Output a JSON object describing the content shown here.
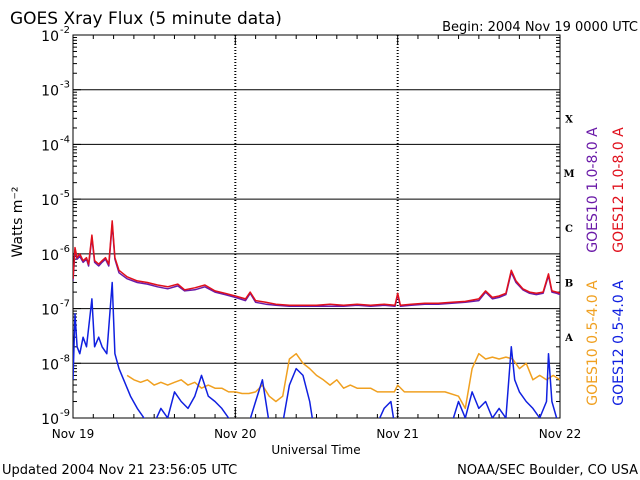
{
  "chart_data": {
    "type": "line",
    "title": "GOES Xray Flux (5 minute data)",
    "begin_label": "Begin:  2004 Nov 19 0000 UTC",
    "xlabel": "Universal Time",
    "ylabel": "Watts m⁻²",
    "y_scale": "log",
    "ylim": [
      1e-09,
      0.01
    ],
    "y_ticks": [
      {
        "base": "10",
        "exp": "-9"
      },
      {
        "base": "10",
        "exp": "-8"
      },
      {
        "base": "10",
        "exp": "-7"
      },
      {
        "base": "10",
        "exp": "-6"
      },
      {
        "base": "10",
        "exp": "-5"
      },
      {
        "base": "10",
        "exp": "-4"
      },
      {
        "base": "10",
        "exp": "-3"
      },
      {
        "base": "10",
        "exp": "-2"
      }
    ],
    "xlim": [
      0,
      72
    ],
    "x_ticks": [
      {
        "hour": 0,
        "label": "Nov 19"
      },
      {
        "hour": 24,
        "label": "Nov 20"
      },
      {
        "hour": 48,
        "label": "Nov 21"
      },
      {
        "hour": 72,
        "label": "Nov 22"
      }
    ],
    "flare_classes": [
      {
        "label": "A",
        "y": 3e-08
      },
      {
        "label": "B",
        "y": 3e-07
      },
      {
        "label": "C",
        "y": 3e-06
      },
      {
        "label": "M",
        "y": 3e-05
      },
      {
        "label": "X",
        "y": 0.0003
      }
    ],
    "grid": "horizontal lines at each decade from 1e-8 to 1e-3",
    "series": [
      {
        "name": "GOES10 1.0-8.0 A",
        "color": "#6a1aa8",
        "points": [
          [
            0,
            3.2e-07
          ],
          [
            0.3,
            1.2e-06
          ],
          [
            0.6,
            8e-07
          ],
          [
            1,
            9e-07
          ],
          [
            1.5,
            7e-07
          ],
          [
            2,
            8e-07
          ],
          [
            2.3,
            6e-07
          ],
          [
            2.8,
            2e-06
          ],
          [
            3.2,
            7e-07
          ],
          [
            3.8,
            6e-07
          ],
          [
            4.3,
            7e-07
          ],
          [
            4.8,
            8e-07
          ],
          [
            5.3,
            6e-07
          ],
          [
            5.8,
            3.5e-06
          ],
          [
            6.2,
            8e-07
          ],
          [
            6.8,
            4.5e-07
          ],
          [
            8,
            3.5e-07
          ],
          [
            9.5,
            3e-07
          ],
          [
            11,
            2.8e-07
          ],
          [
            12.5,
            2.5e-07
          ],
          [
            14,
            2.3e-07
          ],
          [
            15.5,
            2.6e-07
          ],
          [
            16.5,
            2.1e-07
          ],
          [
            18,
            2.2e-07
          ],
          [
            19.5,
            2.5e-07
          ],
          [
            21,
            2e-07
          ],
          [
            22.5,
            1.8e-07
          ],
          [
            24,
            1.6e-07
          ],
          [
            25.5,
            1.4e-07
          ],
          [
            26.2,
            1.9e-07
          ],
          [
            27,
            1.3e-07
          ],
          [
            28.5,
            1.2e-07
          ],
          [
            30,
            1.15e-07
          ],
          [
            32,
            1.1e-07
          ],
          [
            34,
            1.1e-07
          ],
          [
            36,
            1.1e-07
          ],
          [
            38,
            1.1e-07
          ],
          [
            40,
            1.1e-07
          ],
          [
            42,
            1.15e-07
          ],
          [
            44,
            1.1e-07
          ],
          [
            46,
            1.15e-07
          ],
          [
            47.6,
            1.1e-07
          ],
          [
            48,
            1.8e-07
          ],
          [
            48.4,
            1.1e-07
          ],
          [
            50,
            1.15e-07
          ],
          [
            52,
            1.2e-07
          ],
          [
            54,
            1.2e-07
          ],
          [
            56,
            1.25e-07
          ],
          [
            58,
            1.3e-07
          ],
          [
            60,
            1.4e-07
          ],
          [
            61,
            2e-07
          ],
          [
            62,
            1.5e-07
          ],
          [
            63,
            1.6e-07
          ],
          [
            64,
            1.8e-07
          ],
          [
            64.8,
            4.6e-07
          ],
          [
            65.5,
            3e-07
          ],
          [
            66.5,
            2.2e-07
          ],
          [
            67.5,
            1.9e-07
          ],
          [
            68.5,
            1.8e-07
          ],
          [
            69.5,
            1.9e-07
          ],
          [
            70.3,
            4e-07
          ],
          [
            70.8,
            2e-07
          ],
          [
            71.5,
            1.9e-07
          ],
          [
            72,
            1.8e-07
          ]
        ]
      },
      {
        "name": "GOES12 1.0-8.0 A",
        "color": "#e0101c",
        "points": [
          [
            0,
            3.5e-07
          ],
          [
            0.3,
            1.3e-06
          ],
          [
            0.6,
            8.5e-07
          ],
          [
            1,
            1e-06
          ],
          [
            1.5,
            7.5e-07
          ],
          [
            2,
            8.5e-07
          ],
          [
            2.3,
            6.5e-07
          ],
          [
            2.8,
            2.2e-06
          ],
          [
            3.2,
            7.5e-07
          ],
          [
            3.8,
            6.5e-07
          ],
          [
            4.3,
            7.5e-07
          ],
          [
            4.8,
            8.5e-07
          ],
          [
            5.3,
            6.5e-07
          ],
          [
            5.8,
            4e-06
          ],
          [
            6.2,
            8.5e-07
          ],
          [
            6.8,
            5e-07
          ],
          [
            8,
            3.8e-07
          ],
          [
            9.5,
            3.2e-07
          ],
          [
            11,
            3e-07
          ],
          [
            12.5,
            2.7e-07
          ],
          [
            14,
            2.5e-07
          ],
          [
            15.5,
            2.8e-07
          ],
          [
            16.5,
            2.2e-07
          ],
          [
            18,
            2.4e-07
          ],
          [
            19.5,
            2.7e-07
          ],
          [
            21,
            2.1e-07
          ],
          [
            22.5,
            1.9e-07
          ],
          [
            24,
            1.7e-07
          ],
          [
            25.5,
            1.5e-07
          ],
          [
            26.2,
            2e-07
          ],
          [
            27,
            1.4e-07
          ],
          [
            28.5,
            1.3e-07
          ],
          [
            30,
            1.2e-07
          ],
          [
            32,
            1.15e-07
          ],
          [
            34,
            1.15e-07
          ],
          [
            36,
            1.15e-07
          ],
          [
            38,
            1.2e-07
          ],
          [
            40,
            1.15e-07
          ],
          [
            42,
            1.2e-07
          ],
          [
            44,
            1.15e-07
          ],
          [
            46,
            1.2e-07
          ],
          [
            47.6,
            1.15e-07
          ],
          [
            48,
            1.9e-07
          ],
          [
            48.4,
            1.15e-07
          ],
          [
            50,
            1.2e-07
          ],
          [
            52,
            1.25e-07
          ],
          [
            54,
            1.25e-07
          ],
          [
            56,
            1.3e-07
          ],
          [
            58,
            1.35e-07
          ],
          [
            60,
            1.5e-07
          ],
          [
            61,
            2.1e-07
          ],
          [
            62,
            1.6e-07
          ],
          [
            63,
            1.7e-07
          ],
          [
            64,
            1.9e-07
          ],
          [
            64.8,
            5e-07
          ],
          [
            65.5,
            3.2e-07
          ],
          [
            66.5,
            2.3e-07
          ],
          [
            67.5,
            2e-07
          ],
          [
            68.5,
            1.9e-07
          ],
          [
            69.5,
            2e-07
          ],
          [
            70.3,
            4.3e-07
          ],
          [
            70.8,
            2.1e-07
          ],
          [
            71.5,
            2e-07
          ],
          [
            72,
            1.9e-07
          ]
        ]
      },
      {
        "name": "GOES10 0.5-4.0 A",
        "color": "#f0a020",
        "points": [
          [
            8,
            6e-09
          ],
          [
            9,
            5e-09
          ],
          [
            10,
            4.5e-09
          ],
          [
            11,
            5e-09
          ],
          [
            12,
            4e-09
          ],
          [
            13,
            4.5e-09
          ],
          [
            14,
            4e-09
          ],
          [
            15,
            4.5e-09
          ],
          [
            16,
            5e-09
          ],
          [
            17,
            4e-09
          ],
          [
            18,
            4.5e-09
          ],
          [
            19,
            3.5e-09
          ],
          [
            20,
            4e-09
          ],
          [
            21,
            3.5e-09
          ],
          [
            22,
            3.5e-09
          ],
          [
            23,
            3e-09
          ],
          [
            24,
            3e-09
          ],
          [
            25,
            2.8e-09
          ],
          [
            26,
            2.8e-09
          ],
          [
            27,
            3e-09
          ],
          [
            28,
            4e-09
          ],
          [
            29,
            2.5e-09
          ],
          [
            30,
            2e-09
          ],
          [
            31,
            2.5e-09
          ],
          [
            32,
            1.2e-08
          ],
          [
            33,
            1.5e-08
          ],
          [
            34,
            1e-08
          ],
          [
            35,
            8e-09
          ],
          [
            36,
            6e-09
          ],
          [
            37,
            5e-09
          ],
          [
            38,
            4e-09
          ],
          [
            39,
            5e-09
          ],
          [
            40,
            3.5e-09
          ],
          [
            41,
            4e-09
          ],
          [
            42,
            3.5e-09
          ],
          [
            43,
            3.5e-09
          ],
          [
            44,
            3.5e-09
          ],
          [
            45,
            3e-09
          ],
          [
            46,
            3e-09
          ],
          [
            47.5,
            3e-09
          ],
          [
            48,
            4e-09
          ],
          [
            49,
            3e-09
          ],
          [
            52,
            3e-09
          ],
          [
            55,
            3e-09
          ],
          [
            57,
            2.5e-09
          ],
          [
            58,
            1.5e-09
          ],
          [
            59,
            8e-09
          ],
          [
            60,
            1.5e-08
          ],
          [
            61,
            1.2e-08
          ],
          [
            62,
            1.3e-08
          ],
          [
            63,
            1.2e-08
          ],
          [
            64,
            1.3e-08
          ],
          [
            65,
            1.2e-08
          ],
          [
            66,
            8e-09
          ],
          [
            67,
            1e-08
          ],
          [
            68,
            5e-09
          ],
          [
            69,
            6e-09
          ],
          [
            70,
            5e-09
          ],
          [
            71,
            6e-09
          ],
          [
            72,
            5e-09
          ]
        ]
      },
      {
        "name": "GOES12 0.5-4.0 A",
        "color": "#1020e0",
        "points": [
          [
            0,
            5e-09
          ],
          [
            0.3,
            8e-08
          ],
          [
            0.6,
            2e-08
          ],
          [
            1,
            1.5e-08
          ],
          [
            1.5,
            3e-08
          ],
          [
            2,
            2e-08
          ],
          [
            2.8,
            1.5e-07
          ],
          [
            3.2,
            2e-08
          ],
          [
            3.8,
            3e-08
          ],
          [
            4.3,
            2e-08
          ],
          [
            5,
            1.5e-08
          ],
          [
            5.8,
            3e-07
          ],
          [
            6.2,
            1.5e-08
          ],
          [
            6.8,
            8e-09
          ],
          [
            7.5,
            5e-09
          ],
          [
            8.5,
            2.5e-09
          ],
          [
            9.5,
            1.5e-09
          ],
          [
            10.5,
            1e-09
          ],
          [
            12,
            8e-10
          ],
          [
            13,
            1.5e-09
          ],
          [
            14,
            1e-09
          ],
          [
            15,
            3e-09
          ],
          [
            16,
            2e-09
          ],
          [
            17,
            1.5e-09
          ],
          [
            18,
            2.5e-09
          ],
          [
            19,
            6e-09
          ],
          [
            20,
            2.5e-09
          ],
          [
            21,
            2e-09
          ],
          [
            22,
            1.5e-09
          ],
          [
            23,
            1e-09
          ],
          [
            24,
            8e-10
          ],
          [
            26,
            8e-10
          ],
          [
            27,
            2e-09
          ],
          [
            28,
            5e-09
          ],
          [
            29,
            8e-10
          ],
          [
            31,
            8e-10
          ],
          [
            32,
            4e-09
          ],
          [
            33,
            8e-09
          ],
          [
            34,
            6e-09
          ],
          [
            35,
            2e-09
          ],
          [
            35.5,
            8e-10
          ],
          [
            45,
            8e-10
          ],
          [
            46,
            1.5e-09
          ],
          [
            47,
            2e-09
          ],
          [
            47.5,
            8e-10
          ],
          [
            56,
            8e-10
          ],
          [
            57,
            2e-09
          ],
          [
            58,
            1e-09
          ],
          [
            59,
            3e-09
          ],
          [
            60,
            1.5e-09
          ],
          [
            61,
            2e-09
          ],
          [
            62,
            1e-09
          ],
          [
            63,
            1.5e-09
          ],
          [
            64,
            1e-09
          ],
          [
            64.8,
            2e-08
          ],
          [
            65.3,
            5e-09
          ],
          [
            66,
            3e-09
          ],
          [
            67,
            2e-09
          ],
          [
            68,
            1.5e-09
          ],
          [
            69,
            1e-09
          ],
          [
            70,
            2e-09
          ],
          [
            70.3,
            1.5e-08
          ],
          [
            70.8,
            2e-09
          ],
          [
            71.5,
            1e-09
          ],
          [
            72,
            8e-10
          ]
        ]
      }
    ]
  },
  "footer": {
    "updated": "Updated 2004 Nov 21 23:56:05 UTC",
    "source": "NOAA/SEC Boulder, CO USA"
  }
}
